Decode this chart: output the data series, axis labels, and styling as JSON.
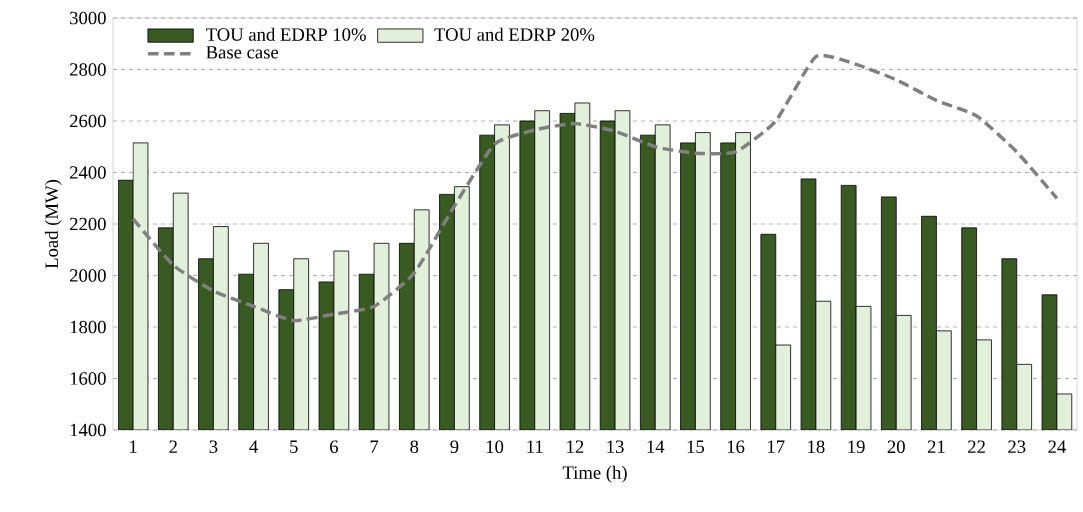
{
  "chart_data": {
    "type": "bar",
    "xlabel": "Time (h)",
    "ylabel": "Load (MW)",
    "categories": [
      "1",
      "2",
      "3",
      "4",
      "5",
      "6",
      "7",
      "8",
      "9",
      "10",
      "11",
      "12",
      "13",
      "14",
      "15",
      "16",
      "17",
      "18",
      "19",
      "20",
      "21",
      "22",
      "23",
      "24"
    ],
    "series": [
      {
        "name": "TOU and EDRP 10%",
        "color": "#3a5a24",
        "values": [
          2370,
          2185,
          2065,
          2005,
          1945,
          1975,
          2005,
          2125,
          2315,
          2545,
          2600,
          2630,
          2600,
          2545,
          2515,
          2515,
          2160,
          2375,
          2350,
          2305,
          2230,
          2185,
          2065,
          1925
        ]
      },
      {
        "name": "TOU and EDRP 20%",
        "color": "#e2efda",
        "values": [
          2515,
          2320,
          2190,
          2125,
          2065,
          2095,
          2125,
          2255,
          2345,
          2585,
          2640,
          2670,
          2640,
          2585,
          2555,
          2555,
          1730,
          1900,
          1880,
          1845,
          1785,
          1750,
          1655,
          1540
        ]
      },
      {
        "name": "Base case",
        "type": "line",
        "color": "#808080",
        "line_style": "dashed",
        "values": [
          2220,
          2040,
          1940,
          1880,
          1825,
          1850,
          1880,
          2010,
          2270,
          2510,
          2565,
          2590,
          2560,
          2500,
          2475,
          2480,
          2600,
          2850,
          2820,
          2760,
          2680,
          2620,
          2480,
          2300
        ]
      }
    ],
    "ylim": [
      1400,
      3000
    ],
    "yticks": [
      1400,
      1600,
      1800,
      2000,
      2200,
      2400,
      2600,
      2800,
      3000
    ],
    "grid": "y",
    "legend": "top left"
  }
}
